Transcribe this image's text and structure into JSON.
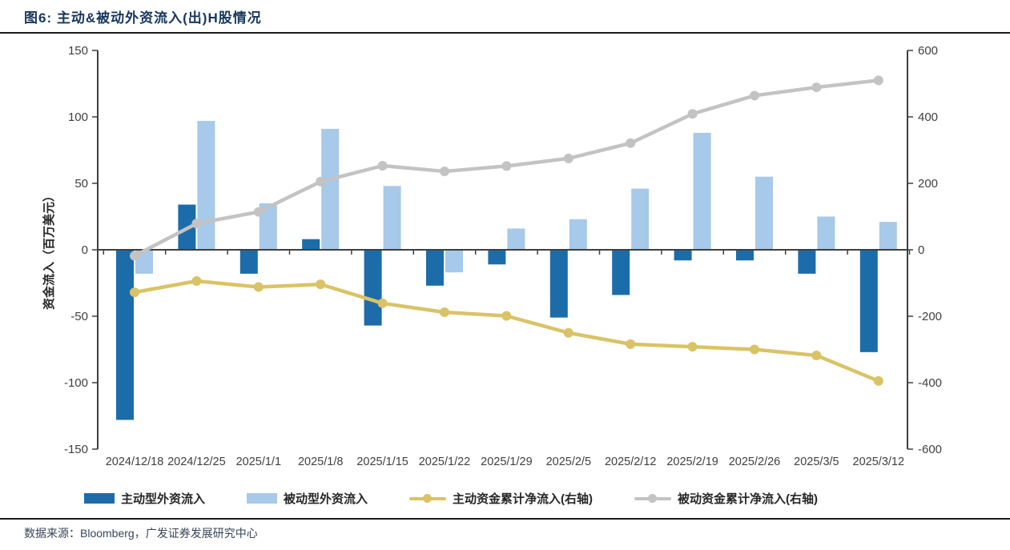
{
  "title": "图6:  主动&被动外资流入(出)H股情况",
  "footer": "数据来源：Bloomberg，广发证券发展研究中心",
  "chart_data": {
    "type": "bar",
    "subtype": "combo-bar-line-dual-axis",
    "title": "主动&被动外资流入(出)H股情况",
    "categories": [
      "2024/12/18",
      "2024/12/25",
      "2025/1/1",
      "2025/1/8",
      "2025/1/15",
      "2025/1/22",
      "2025/1/29",
      "2025/2/5",
      "2025/2/12",
      "2025/2/19",
      "2025/2/26",
      "2025/3/5",
      "2025/3/12"
    ],
    "series": [
      {
        "name": "主动型外资流入",
        "type": "bar",
        "axis": "left",
        "color": "#1C6CA9",
        "values": [
          -128,
          34,
          -18,
          8,
          -57,
          -27,
          -11,
          -51,
          -34,
          -8,
          -8,
          -18,
          -77
        ]
      },
      {
        "name": "被动型外资流入",
        "type": "bar",
        "axis": "left",
        "color": "#A7C9EA",
        "values": [
          -18,
          97,
          35,
          91,
          48,
          -17,
          16,
          23,
          46,
          88,
          55,
          25,
          21
        ]
      },
      {
        "name": "主动资金累计净流入(右轴)",
        "type": "line",
        "axis": "right",
        "color": "#D9C366",
        "values": [
          -128,
          -94,
          -112,
          -104,
          -161,
          -188,
          -199,
          -250,
          -284,
          -292,
          -300,
          -318,
          -395
        ]
      },
      {
        "name": "被动资金累计净流入(右轴)",
        "type": "line",
        "axis": "right",
        "color": "#C3C3C3",
        "values": [
          -18,
          79,
          114,
          205,
          253,
          236,
          252,
          275,
          321,
          409,
          464,
          489,
          510
        ]
      }
    ],
    "ylabel_left": "资金流入（百万美元）",
    "ylim_left": [
      -150,
      150
    ],
    "yticks_left": [
      150,
      100,
      50,
      0,
      -50,
      -100,
      -150
    ],
    "ylim_right": [
      -600,
      600
    ],
    "yticks_right": [
      600,
      400,
      200,
      0,
      -200,
      -400,
      -600
    ],
    "grid": false,
    "legend_position": "bottom",
    "axis_color": "#3F3F3F",
    "tick_label_color": "#404040"
  }
}
